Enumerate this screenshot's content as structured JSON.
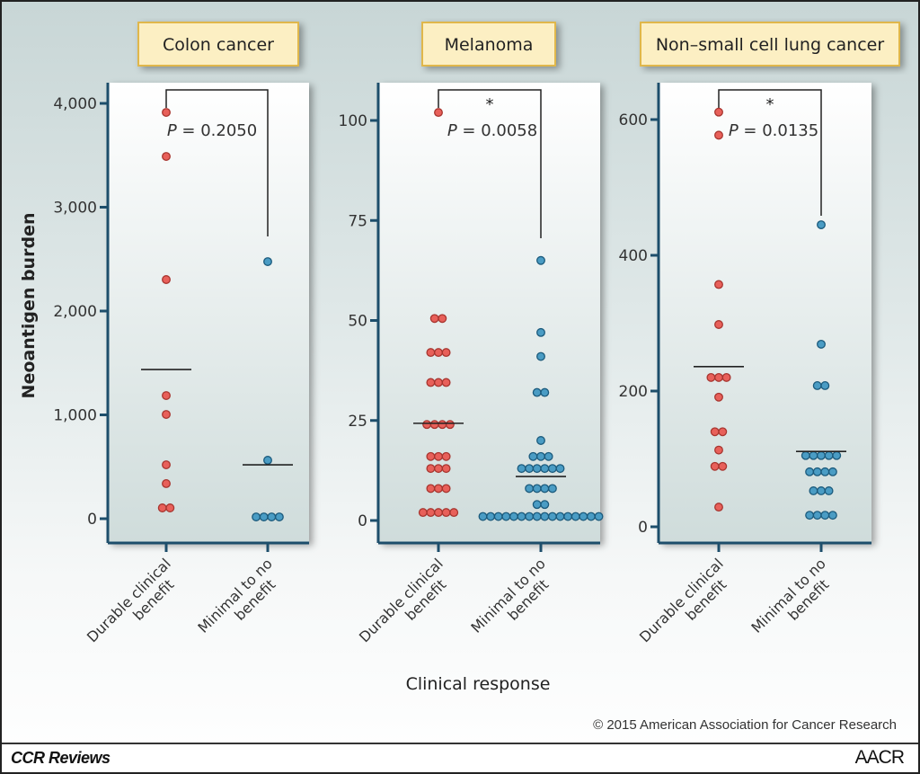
{
  "chart_data": [
    {
      "type": "scatter",
      "title": "Colon cancer",
      "ylabel": "Neoantigen burden",
      "xlabel": "Clinical response",
      "categories": [
        "Durable clinical benefit",
        "Minimal to no benefit"
      ],
      "ylim": [
        0,
        4000
      ],
      "yticks": [
        0,
        1000,
        2000,
        3000,
        4000
      ],
      "ytick_labels": [
        "0",
        "1,000",
        "2,000",
        "3,000",
        "4,000"
      ],
      "series": [
        {
          "values": [
            3913,
            3489,
            2303,
            1186,
            1004,
            519,
            338,
            104,
            104
          ],
          "mean": 1437,
          "color": "#e8605a"
        },
        {
          "values": [
            2476,
            563,
            17,
            17,
            17,
            17
          ],
          "mean": 519,
          "color": "#4a9cc4"
        }
      ],
      "annotation": {
        "p_label": "P",
        "p_value": "= 0.2050",
        "significance": ""
      }
    },
    {
      "type": "scatter",
      "title": "Melanoma",
      "categories": [
        "Durable clinical benefit",
        "Minimal to no benefit"
      ],
      "ylim": [
        0,
        100
      ],
      "yticks": [
        0,
        25,
        50,
        75,
        100
      ],
      "ytick_labels": [
        "0",
        "25",
        "50",
        "75",
        "100"
      ],
      "series": [
        {
          "values": [
            102,
            50.5,
            50.5,
            42,
            42,
            42,
            34.5,
            34.5,
            34.5,
            24,
            24,
            24,
            24,
            16,
            16,
            16,
            13,
            13,
            13,
            8,
            8,
            8,
            2,
            2,
            2,
            2,
            2
          ],
          "mean": 24.3,
          "color": "#e8605a"
        },
        {
          "values": [
            65,
            47,
            41,
            32,
            32,
            20,
            16,
            16,
            16,
            13,
            13,
            13,
            13,
            13,
            13,
            8,
            8,
            8,
            8,
            4,
            4,
            1,
            1,
            1,
            1,
            1,
            1,
            1,
            1,
            1,
            1,
            1,
            1,
            1,
            1,
            1,
            1
          ],
          "mean": 11,
          "color": "#4a9cc4"
        }
      ],
      "annotation": {
        "p_label": "P",
        "p_value": "= 0.0058",
        "significance": "*"
      }
    },
    {
      "type": "scatter",
      "title": "Non–small cell lung cancer",
      "categories": [
        "Durable clinical benefit",
        "Minimal to no benefit"
      ],
      "ylim": [
        0,
        600
      ],
      "yticks": [
        0,
        200,
        400,
        600
      ],
      "ytick_labels": [
        "0",
        "200",
        "400",
        "600"
      ],
      "series": [
        {
          "values": [
            611,
            577,
            357,
            298,
            220,
            220,
            220,
            191,
            140,
            140,
            113,
            89,
            89,
            29
          ],
          "mean": 236,
          "color": "#e8605a"
        },
        {
          "values": [
            445,
            269,
            208,
            208,
            105,
            105,
            105,
            105,
            105,
            81,
            81,
            81,
            81,
            53,
            53,
            53,
            17,
            17,
            17,
            17
          ],
          "mean": 111,
          "color": "#4a9cc4"
        }
      ],
      "annotation": {
        "p_label": "P",
        "p_value": "= 0.0135",
        "significance": "*"
      }
    }
  ],
  "labels": {
    "ylabel": "Neoantigen burden",
    "xlabel": "Clinical response",
    "copyright": "© 2015 American Association for Cancer Research",
    "journal": "CCR Reviews",
    "publisher_logo": "AACR"
  }
}
